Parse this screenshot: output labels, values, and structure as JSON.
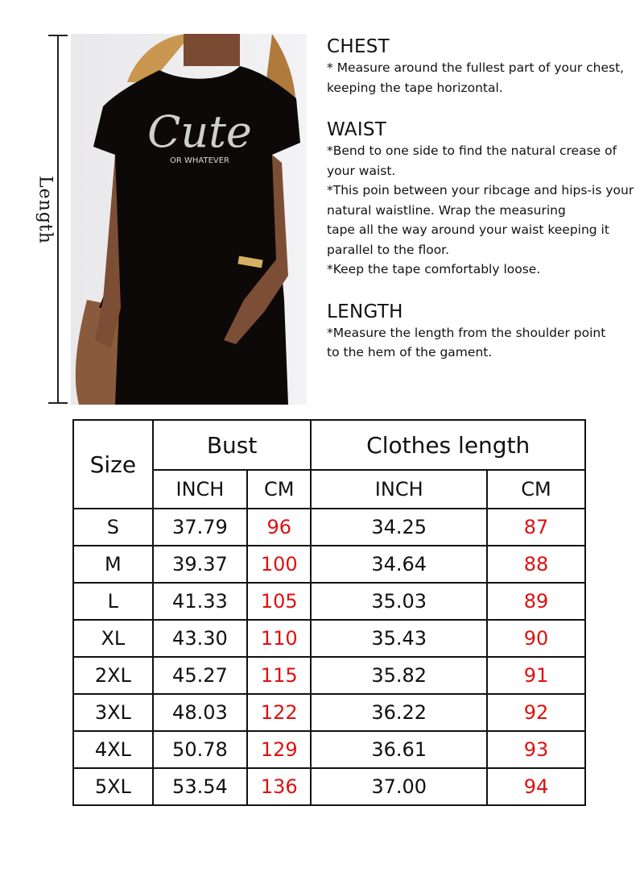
{
  "ruler": {
    "label": "Length"
  },
  "photo": {
    "print_main": "Cute",
    "print_sub": "OR WHATEVER",
    "dress_color": "#0d0909"
  },
  "guide": {
    "sections": [
      {
        "title": "CHEST",
        "lines": [
          "* Measure around the fullest part of your chest,",
          "keeping the tape horizontal."
        ]
      },
      {
        "title": "WAIST",
        "lines": [
          "*Bend to one side to find the natural crease of",
          "your waist.",
          "*This poin between your ribcage and hips-is your",
          "natural waistline. Wrap the measuring",
          "tape all the way around your waist keeping it",
          "parallel to the floor.",
          "*Keep the tape comfortably loose."
        ]
      },
      {
        "title": "LENGTH",
        "lines": [
          "*Measure the length from the shoulder point",
          "to the hem of the gament."
        ]
      }
    ]
  },
  "table": {
    "size_header": "Size",
    "groups": [
      "Bust",
      "Clothes length"
    ],
    "units": [
      "INCH",
      "CM",
      "INCH",
      "CM"
    ],
    "cm_color": "#e01010",
    "rows": [
      [
        "S",
        "37.79",
        "96",
        "34.25",
        "87"
      ],
      [
        "M",
        "39.37",
        "100",
        "34.64",
        "88"
      ],
      [
        "L",
        "41.33",
        "105",
        "35.03",
        "89"
      ],
      [
        "XL",
        "43.30",
        "110",
        "35.43",
        "90"
      ],
      [
        "2XL",
        "45.27",
        "115",
        "35.82",
        "91"
      ],
      [
        "3XL",
        "48.03",
        "122",
        "36.22",
        "92"
      ],
      [
        "4XL",
        "50.78",
        "129",
        "36.61",
        "93"
      ],
      [
        "5XL",
        "53.54",
        "136",
        "37.00",
        "94"
      ]
    ]
  }
}
